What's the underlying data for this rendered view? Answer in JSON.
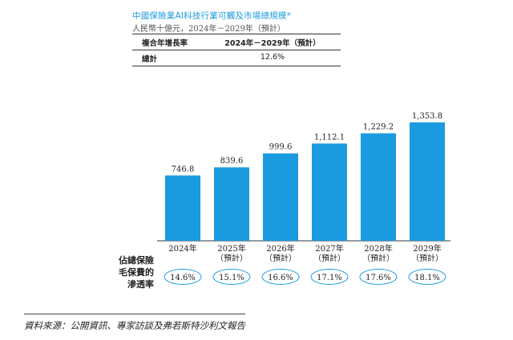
{
  "header": {
    "title": "中國保險業AI科技行業可觸及市場總規模*",
    "subtitle": "人民幣十億元，2024年－2029年（預計）"
  },
  "summary_table": {
    "col1_header": "複合年增長率",
    "col2_header": "2024年－2029年（預計）",
    "row_label": "總計",
    "row_value": "12.6%"
  },
  "penetration": {
    "label_lines": [
      "佔總保險",
      "毛保費的",
      "滲透率"
    ],
    "values": [
      "14.6%",
      "15.1%",
      "16.6%",
      "17.1%",
      "17.6%",
      "18.1%"
    ]
  },
  "source": "資料來源：公開資訊、專家訪談及弗若斯特沙利文報告",
  "colors": {
    "bar": "#1a9be0",
    "ellipse": "#1a9be0",
    "title": "#1a9be0"
  },
  "chart_data": {
    "type": "bar",
    "categories": [
      "2024年",
      "2025年",
      "2026年",
      "2027年",
      "2028年",
      "2029年"
    ],
    "category_sublabels": [
      "",
      "（預計）",
      "（預計）",
      "（預計）",
      "（預計）",
      "（預計）"
    ],
    "values": [
      746.8,
      839.6,
      999.6,
      1112.1,
      1229.2,
      1353.8
    ],
    "data_labels": [
      "746.8",
      "839.6",
      "999.6",
      "1,112.1",
      "1,229.2",
      "1,353.8"
    ],
    "title": "中國保險業AI科技行業可觸及市場總規模*",
    "ylabel": "",
    "xlabel": "",
    "ylim": [
      0,
      1353.8
    ],
    "grid": false,
    "legend": "none"
  }
}
